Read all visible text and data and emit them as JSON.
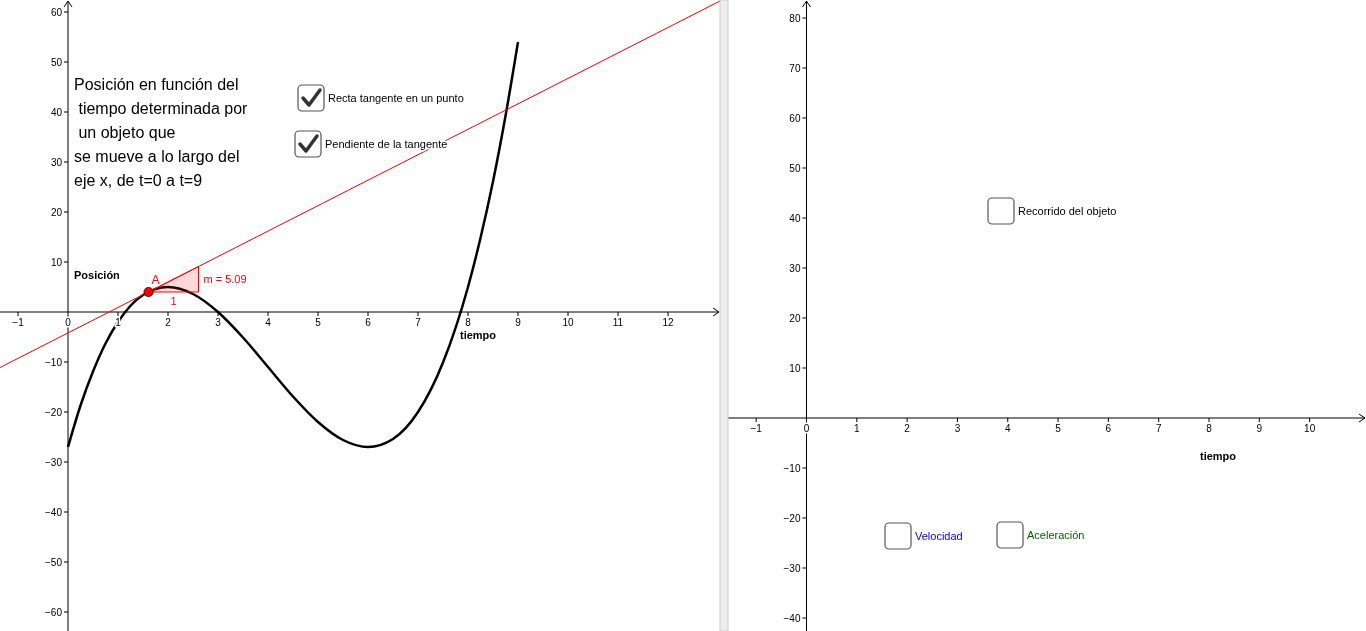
{
  "chart_data": [
    {
      "type": "line",
      "title": "Posición en función del\n tiempo determinada por\n un objeto que\nse mueve a lo largo del\neje x, de t=0 a t=9",
      "xlabel": "tiempo",
      "ylabel": "Posición",
      "xlim": [
        -1.36,
        13.04
      ],
      "ylim": [
        -63.8,
        62.4
      ],
      "xticks": [
        -1,
        0,
        1,
        2,
        3,
        4,
        5,
        6,
        7,
        8,
        9,
        10,
        11,
        12
      ],
      "yticks": [
        -60,
        -50,
        -40,
        -30,
        -20,
        -10,
        10,
        20,
        30,
        40,
        50,
        60
      ],
      "series": [
        {
          "color": "#000000",
          "x": [
            0,
            0.25,
            0.5,
            0.75,
            1,
            1.5,
            2,
            2.5,
            3,
            3.5,
            4,
            4.5,
            5,
            5.5,
            6,
            6.5,
            7,
            7.5,
            8,
            8.25,
            8.5,
            8.75,
            9
          ],
          "values": [
            -27,
            -18.7,
            -11.9,
            -6.3,
            -2,
            3.4,
            5,
            3.6,
            0,
            -5.1,
            -11,
            -16.9,
            -22,
            -25.6,
            -27,
            -25.4,
            -20,
            -10.1,
            5,
            14.8,
            26.1,
            39.2,
            54
          ]
        },
        {
          "color": "#ff0000",
          "x": [
            -1.36,
            13.04
          ],
          "values": [
            -11.1,
            62.2
          ]
        },
        {
          "type": "scatter",
          "name": "A",
          "color": "#ff0000",
          "marker": "circle",
          "x": [
            1.61
          ],
          "values": [
            4.0
          ]
        }
      ],
      "annotations": [
        "Recta tangente en un punto",
        "Pendiente de la tangente",
        "m = 5.09",
        "1"
      ]
    },
    {
      "type": "line",
      "xlabel": "tiempo",
      "xlim": [
        -1.56,
        11.12
      ],
      "ylim": [
        -42.6,
        83.6
      ],
      "xticks": [
        -1,
        0,
        1,
        2,
        3,
        4,
        5,
        6,
        7,
        8,
        9,
        10
      ],
      "yticks": [
        -40,
        -30,
        -20,
        -10,
        10,
        20,
        30,
        40,
        50,
        60,
        70,
        80
      ],
      "annotations": [
        "Recorrido del objeto",
        "Velocidad",
        "Aceleración"
      ]
    }
  ]
}
